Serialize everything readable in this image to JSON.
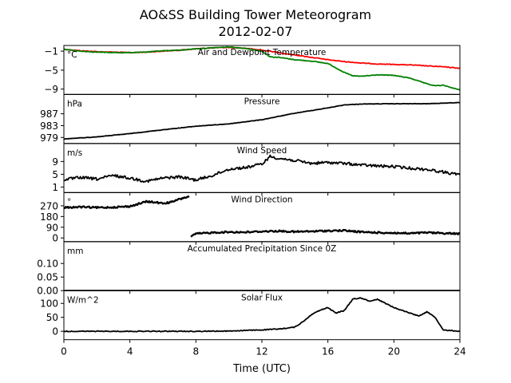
{
  "figure": {
    "title": "AO&SS Building Tower Meteorogram",
    "subtitle": "2012-02-07",
    "xlabel": "Time (UTC)"
  },
  "chart_data": [
    {
      "type": "line",
      "name": "temperature-panel",
      "title": "Air and Dewpoint Temperature",
      "ylabel": "°C",
      "xlim": [
        0,
        24
      ],
      "ylim": [
        -10.1,
        0.2
      ],
      "yticks": [
        -1,
        -5,
        -9
      ],
      "ytick_labels": [
        "−1",
        "−5",
        "−9"
      ],
      "xticks": [
        0,
        4,
        8,
        12,
        16,
        20,
        24
      ],
      "grid": false,
      "series": [
        {
          "color": "#ff0000",
          "x": [
            0,
            1,
            2,
            3,
            4,
            5,
            6,
            7,
            8,
            9,
            10,
            11,
            12,
            12.5,
            13,
            14,
            15,
            16,
            17,
            18,
            19,
            20,
            21,
            22,
            23,
            24
          ],
          "y": [
            -0.6,
            -0.9,
            -1.1,
            -1.2,
            -1.3,
            -1.2,
            -1.0,
            -0.8,
            -0.5,
            -0.3,
            -0.2,
            -0.4,
            -0.8,
            -1.0,
            -1.3,
            -1.8,
            -2.3,
            -2.8,
            -3.2,
            -3.5,
            -3.7,
            -3.8,
            -3.9,
            -4.1,
            -4.3,
            -4.6
          ]
        },
        {
          "color": "#008000",
          "x": [
            0,
            1,
            2,
            3,
            4,
            5,
            6,
            7,
            8,
            9,
            10,
            11,
            12,
            12.5,
            13,
            14,
            15,
            16,
            17,
            17.5,
            18,
            19,
            20,
            21,
            22,
            22.5,
            23,
            24
          ],
          "y": [
            -0.6,
            -1.0,
            -1.2,
            -1.3,
            -1.3,
            -1.2,
            -0.9,
            -0.8,
            -0.5,
            -0.3,
            -0.1,
            -0.4,
            -1.0,
            -2.2,
            -2.3,
            -2.8,
            -3.1,
            -3.6,
            -5.5,
            -6.2,
            -6.3,
            -6.0,
            -6.1,
            -6.7,
            -7.9,
            -8.3,
            -8.2,
            -9.2
          ]
        }
      ]
    },
    {
      "type": "line",
      "name": "pressure-panel",
      "title": "Pressure",
      "ylabel": "hPa",
      "xlim": [
        0,
        24
      ],
      "ylim": [
        977,
        993.5
      ],
      "yticks": [
        979,
        983,
        987
      ],
      "ytick_labels": [
        "979",
        "983",
        "987"
      ],
      "grid": false,
      "series": [
        {
          "color": "#000000",
          "x": [
            0,
            2,
            4,
            6,
            8,
            10,
            12,
            14,
            16,
            17,
            18,
            20,
            22,
            24
          ],
          "y": [
            978.5,
            979.2,
            980.3,
            981.6,
            982.8,
            983.6,
            985.0,
            987.2,
            989.0,
            990.0,
            990.3,
            990.4,
            990.4,
            990.8
          ]
        }
      ]
    },
    {
      "type": "line",
      "name": "wind-speed-panel",
      "title": "Wind Speed",
      "ylabel": "m/s",
      "xlim": [
        0,
        24
      ],
      "ylim": [
        -0.7,
        14.6
      ],
      "yticks": [
        1,
        5,
        9
      ],
      "ytick_labels": [
        "1",
        "5",
        "9"
      ],
      "grid": false,
      "series": [
        {
          "color": "#000000",
          "x": [
            0,
            1,
            2,
            3,
            4,
            5,
            6,
            7,
            8,
            9,
            10,
            11,
            12,
            12.5,
            13,
            14,
            15,
            16,
            17,
            18,
            19,
            20,
            21,
            22,
            23,
            24
          ],
          "y": [
            3.3,
            4.0,
            3.5,
            4.6,
            3.8,
            2.8,
            3.8,
            4.2,
            3.2,
            4.6,
            6.6,
            7.1,
            8.2,
            10.6,
            10.0,
            9.3,
            8.4,
            8.7,
            8.4,
            7.9,
            7.6,
            7.4,
            6.9,
            6.5,
            5.7,
            4.8
          ]
        }
      ]
    },
    {
      "type": "line",
      "name": "wind-direction-panel",
      "title": "Wind Direction",
      "ylabel": "°",
      "xlim": [
        0,
        24
      ],
      "ylim": [
        -30,
        380
      ],
      "yticks": [
        0,
        90,
        180,
        270
      ],
      "ytick_labels": [
        "0",
        "90",
        "180",
        "270"
      ],
      "grid": false,
      "series": [
        {
          "color": "#000000",
          "x": [
            0,
            1,
            2,
            3,
            4,
            4.5,
            5,
            5.5,
            6,
            6.5,
            7,
            7.6
          ],
          "y": [
            255,
            260,
            255,
            258,
            265,
            285,
            305,
            300,
            290,
            300,
            325,
            350
          ]
        },
        {
          "color": "#000000",
          "x": [
            7.7,
            8,
            9,
            10,
            11,
            12,
            13,
            14,
            15,
            16,
            17,
            18,
            19,
            20,
            21,
            22,
            23,
            24
          ],
          "y": [
            10,
            35,
            45,
            50,
            48,
            55,
            58,
            52,
            55,
            60,
            62,
            50,
            45,
            42,
            38,
            45,
            40,
            35
          ]
        }
      ]
    },
    {
      "type": "line",
      "name": "precipitation-panel",
      "title": "Accumulated Precipitation Since 0Z",
      "ylabel": "mm",
      "xlim": [
        0,
        24
      ],
      "ylim": [
        0,
        0.18
      ],
      "yticks": [
        0.0,
        0.05,
        0.1
      ],
      "ytick_labels": [
        "0.00",
        "0.05",
        "0.10"
      ],
      "grid": false,
      "series": [
        {
          "color": "#000000",
          "x": [
            0,
            24
          ],
          "y": [
            0.0,
            0.0
          ]
        }
      ]
    },
    {
      "type": "line",
      "name": "solar-flux-panel",
      "title": "Solar Flux",
      "ylabel": "W/m^2",
      "xlim": [
        0,
        24
      ],
      "ylim": [
        -30,
        145
      ],
      "yticks": [
        0,
        50,
        100
      ],
      "ytick_labels": [
        "0",
        "50",
        "100"
      ],
      "grid": false,
      "series": [
        {
          "color": "#000000",
          "x": [
            0,
            4,
            8,
            10,
            11,
            12,
            13,
            14,
            14.5,
            15,
            15.5,
            16,
            16.5,
            17,
            17.5,
            18,
            18.5,
            19,
            19.5,
            20,
            21,
            21.5,
            22,
            22.5,
            23,
            24
          ],
          "y": [
            0,
            0,
            0,
            1,
            3,
            5,
            8,
            15,
            35,
            60,
            75,
            85,
            65,
            75,
            115,
            120,
            108,
            115,
            100,
            85,
            65,
            55,
            70,
            50,
            5,
            0
          ]
        }
      ]
    }
  ]
}
